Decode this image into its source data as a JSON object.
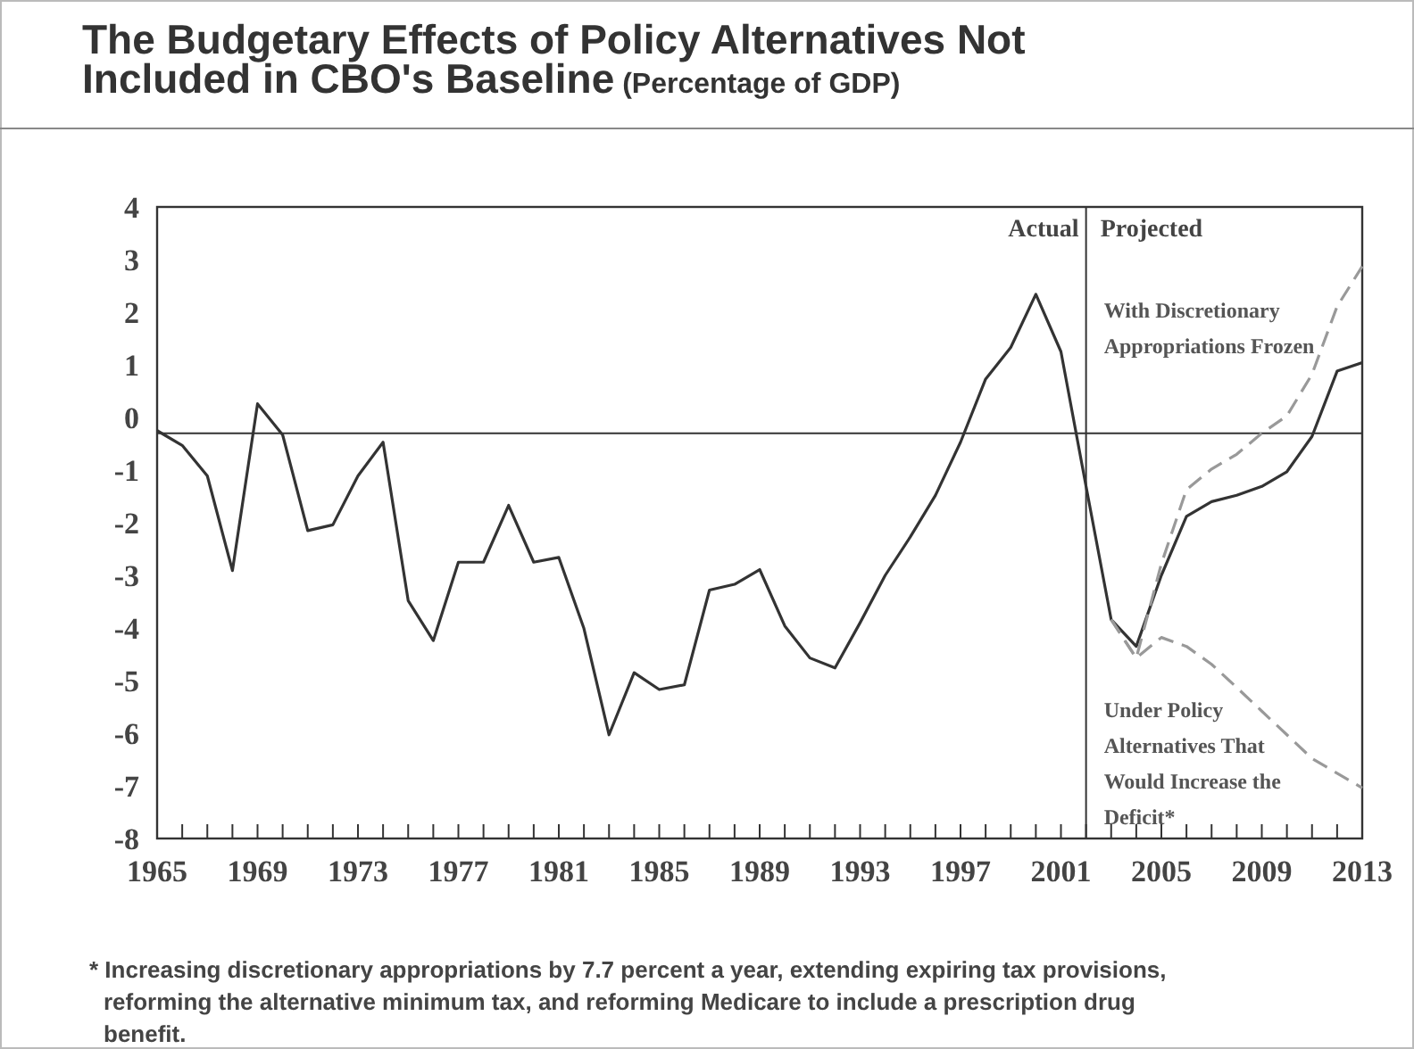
{
  "chart_data": {
    "type": "line",
    "title": "The Budgetary Effects of Policy Alternatives Not Included in CBO's Baseline",
    "subtitle": "(Percentage of GDP)",
    "x": [
      1965,
      1966,
      1967,
      1968,
      1969,
      1970,
      1971,
      1972,
      1973,
      1974,
      1975,
      1976,
      1977,
      1978,
      1979,
      1980,
      1981,
      1982,
      1983,
      1984,
      1985,
      1986,
      1987,
      1988,
      1989,
      1990,
      1991,
      1992,
      1993,
      1994,
      1995,
      1996,
      1997,
      1998,
      1999,
      2000,
      2001,
      2002,
      2003,
      2004,
      2005,
      2006,
      2007,
      2008,
      2009,
      2010,
      2011,
      2012,
      2013
    ],
    "series": [
      {
        "color": "#333333",
        "line_style": "solid",
        "values": [
          -0.25,
          -0.53,
          -1.11,
          -2.91,
          0.26,
          -0.33,
          -2.15,
          -2.04,
          -1.11,
          -0.47,
          -3.48,
          -4.24,
          -2.75,
          -2.75,
          -1.67,
          -2.75,
          -2.66,
          -4.01,
          -6.03,
          -4.85,
          -5.17,
          -5.08,
          -3.28,
          -3.17,
          -2.89,
          -3.96,
          -4.57,
          -4.76,
          -3.9,
          -3.0,
          -2.27,
          -1.48,
          -0.47,
          0.73,
          1.33,
          2.34,
          1.25,
          -1.31,
          -3.84,
          -4.35,
          -3.0,
          -1.88,
          -1.6,
          -1.48,
          -1.31,
          -1.03,
          -0.36,
          0.88,
          1.04
        ]
      },
      {
        "name": "With Discretionary Appropriations Frozen",
        "color": "#999999",
        "line_style": "dashed",
        "x": [
          2003,
          2004,
          2005,
          2006,
          2007,
          2008,
          2009,
          2010,
          2011,
          2012,
          2013
        ],
        "values": [
          -3.84,
          -4.57,
          -2.78,
          -1.37,
          -0.98,
          -0.7,
          -0.3,
          0.03,
          0.82,
          2.11,
          2.87
        ]
      },
      {
        "name": "Under Policy Alternatives That Would Increase the Deficit*",
        "color": "#999999",
        "line_style": "dashed",
        "x": [
          2003,
          2004,
          2005,
          2006,
          2007,
          2008,
          2009,
          2010,
          2011,
          2012,
          2013
        ],
        "values": [
          -3.84,
          -4.57,
          -4.18,
          -4.35,
          -4.69,
          -5.13,
          -5.58,
          -6.03,
          -6.48,
          -6.76,
          -7.04
        ]
      }
    ],
    "xlim": [
      1965,
      2013
    ],
    "xticks": [
      1965,
      {
        "value": 1966,
        "label": null
      },
      {
        "value": 1967,
        "label": null
      },
      {
        "value": 1968,
        "label": null
      },
      1969,
      {
        "value": 1970,
        "label": null
      },
      {
        "value": 1971,
        "label": null
      },
      {
        "value": 1972,
        "label": null
      },
      1973,
      {
        "value": 1974,
        "label": null
      },
      {
        "value": 1975,
        "label": null
      },
      {
        "value": 1976,
        "label": null
      },
      1977,
      {
        "value": 1978,
        "label": null
      },
      {
        "value": 1979,
        "label": null
      },
      {
        "value": 1980,
        "label": null
      },
      1981,
      {
        "value": 1982,
        "label": null
      },
      {
        "value": 1983,
        "label": null
      },
      {
        "value": 1984,
        "label": null
      },
      1985,
      {
        "value": 1986,
        "label": null
      },
      {
        "value": 1987,
        "label": null
      },
      {
        "value": 1988,
        "label": null
      },
      1989,
      {
        "value": 1990,
        "label": null
      },
      {
        "value": 1991,
        "label": null
      },
      {
        "value": 1992,
        "label": null
      },
      1993,
      {
        "value": 1994,
        "label": null
      },
      {
        "value": 1995,
        "label": null
      },
      {
        "value": 1996,
        "label": null
      },
      1997,
      {
        "value": 1998,
        "label": null
      },
      {
        "value": 1999,
        "label": null
      },
      {
        "value": 2000,
        "label": null
      },
      2001,
      {
        "value": 2002,
        "label": null
      },
      {
        "value": 2003,
        "label": null
      },
      {
        "value": 2004,
        "label": null
      },
      2005,
      {
        "value": 2006,
        "label": null
      },
      {
        "value": 2007,
        "label": null
      },
      {
        "value": 2008,
        "label": null
      },
      2009,
      {
        "value": 2010,
        "label": null
      },
      {
        "value": 2011,
        "label": null
      },
      {
        "value": 2012,
        "label": null
      },
      2013
    ],
    "ylim": [
      -8,
      4
    ],
    "yticks": [
      -8,
      -7,
      -6,
      -5,
      -4,
      -3,
      -2,
      -1,
      0,
      1,
      2,
      3,
      4
    ],
    "grid": false,
    "marker": "none",
    "ref_lines": [
      {
        "axis": "y",
        "value": -0.3,
        "color": "#333333"
      },
      {
        "axis": "x",
        "value": 2002,
        "color": "#333333"
      }
    ],
    "annotations": [
      {
        "text": "Actual",
        "x": 2002,
        "y": 3.6
      },
      {
        "text": "Projected",
        "x": 2002,
        "y": 3.6
      },
      "* Increasing discretionary appropriations by 7.7 percent a year, extending expiring tax provisions, reforming the alternative minimum tax, and reforming Medicare to include a prescription drug benefit."
    ]
  }
}
